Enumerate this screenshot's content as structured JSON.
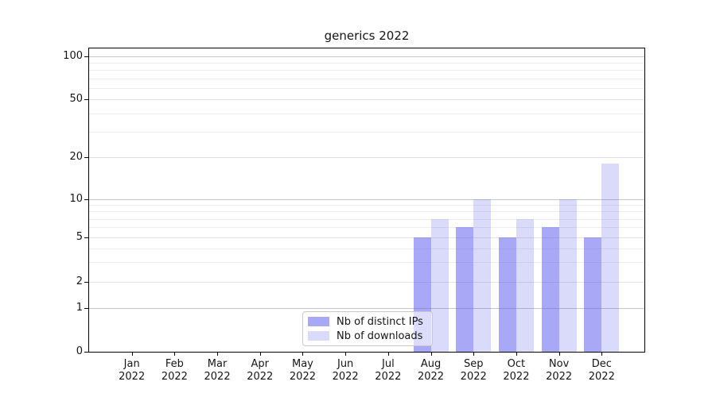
{
  "chart_data": {
    "type": "bar",
    "title": "generics 2022",
    "categories": [
      "Jan 2022",
      "Feb 2022",
      "Mar 2022",
      "Apr 2022",
      "May 2022",
      "Jun 2022",
      "Jul 2022",
      "Aug 2022",
      "Sep 2022",
      "Oct 2022",
      "Nov 2022",
      "Dec 2022"
    ],
    "series": [
      {
        "name": "Nb of distinct IPs",
        "color": "rgba(100,100,240,0.56)",
        "values": [
          0,
          0,
          0,
          0,
          0,
          0,
          0,
          5,
          6,
          5,
          6,
          5
        ]
      },
      {
        "name": "Nb of downloads",
        "color": "rgba(100,100,240,0.24)",
        "values": [
          0,
          0,
          0,
          0,
          0,
          0,
          0,
          7,
          10,
          7,
          10,
          18
        ]
      }
    ],
    "y_axis": {
      "scale": "symlog",
      "labeled_ticks": [
        0,
        1,
        2,
        5,
        10,
        20,
        50,
        100
      ],
      "decade_ticks": [
        1,
        10,
        100
      ],
      "minor_gridlines": [
        3,
        4,
        6,
        7,
        8,
        9,
        30,
        40,
        60,
        70,
        80,
        90
      ],
      "ylim": [
        0,
        115
      ]
    },
    "legend": {
      "position": "lower center"
    },
    "grid": true
  },
  "colors": {
    "bar_base": "#6464f0",
    "grid_decade": "#c6c6c6",
    "grid_labeled": "#e2e2e2",
    "grid_minor": "#ededed",
    "spine": "#000000",
    "text": "#151515",
    "legend_border": "#c9c9c9"
  }
}
